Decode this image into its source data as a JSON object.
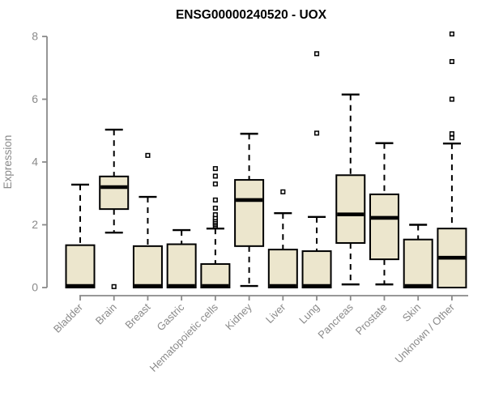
{
  "chart_data": {
    "type": "boxplot",
    "title": "ENSG00000240520 - UOX",
    "xlabel": "",
    "ylabel": "Expression",
    "ylim": [
      0,
      8
    ],
    "yticks": [
      0,
      2,
      4,
      6,
      8
    ],
    "grid": false,
    "legend_position": "none",
    "colors": {
      "box_fill": "#ECE6CD",
      "box_border": "#000000",
      "median": "#000000",
      "whisker": "#000000",
      "axis": "#8a8a8a",
      "tick_text": "#8a8a8a",
      "title_text": "#000000",
      "background": "#ffffff"
    },
    "categories": [
      "Bladder",
      "Brain",
      "Breast",
      "Gastric",
      "Hematopoietic cells",
      "Kidney",
      "Liver",
      "Lung",
      "Pancreas",
      "Prostate",
      "Skin",
      "Unknown / Other"
    ],
    "boxes": [
      {
        "category": "Bladder",
        "whisker_low": 0,
        "q1": 0,
        "median": 0.05,
        "q3": 1.35,
        "whisker_high": 3.28,
        "outliers": []
      },
      {
        "category": "Brain",
        "whisker_low": 1.75,
        "q1": 2.5,
        "median": 3.2,
        "q3": 3.54,
        "whisker_high": 5.03,
        "outliers": [
          0.03
        ]
      },
      {
        "category": "Breast",
        "whisker_low": 0,
        "q1": 0,
        "median": 0.05,
        "q3": 1.32,
        "whisker_high": 2.89,
        "outliers": [
          4.21
        ]
      },
      {
        "category": "Gastric",
        "whisker_low": 0,
        "q1": 0,
        "median": 0.05,
        "q3": 1.38,
        "whisker_high": 1.83,
        "outliers": []
      },
      {
        "category": "Hematopoietic cells",
        "whisker_low": 0,
        "q1": 0,
        "median": 0.05,
        "q3": 0.75,
        "whisker_high": 1.88,
        "outliers": [
          1.95,
          2.0,
          2.05,
          2.1,
          2.16,
          2.22,
          2.32,
          2.53,
          2.79,
          3.3,
          3.55,
          3.79
        ]
      },
      {
        "category": "Kidney",
        "whisker_low": 0.05,
        "q1": 1.32,
        "median": 2.79,
        "q3": 3.43,
        "whisker_high": 4.9,
        "outliers": []
      },
      {
        "category": "Liver",
        "whisker_low": 0,
        "q1": 0,
        "median": 0.05,
        "q3": 1.21,
        "whisker_high": 2.37,
        "outliers": [
          3.05
        ]
      },
      {
        "category": "Lung",
        "whisker_low": 0,
        "q1": 0,
        "median": 0.05,
        "q3": 1.16,
        "whisker_high": 2.25,
        "outliers": [
          4.92,
          7.45
        ]
      },
      {
        "category": "Pancreas",
        "whisker_low": 0.1,
        "q1": 1.42,
        "median": 2.33,
        "q3": 3.58,
        "whisker_high": 6.15,
        "outliers": []
      },
      {
        "category": "Prostate",
        "whisker_low": 0.1,
        "q1": 0.9,
        "median": 2.22,
        "q3": 2.97,
        "whisker_high": 4.6,
        "outliers": []
      },
      {
        "category": "Skin",
        "whisker_low": 0,
        "q1": 0,
        "median": 0.05,
        "q3": 1.53,
        "whisker_high": 2.0,
        "outliers": []
      },
      {
        "category": "Unknown / Other",
        "whisker_low": 0,
        "q1": 0,
        "median": 0.95,
        "q3": 1.88,
        "whisker_high": 4.59,
        "outliers": [
          4.77,
          4.9,
          6.0,
          7.2,
          8.08
        ]
      }
    ]
  }
}
